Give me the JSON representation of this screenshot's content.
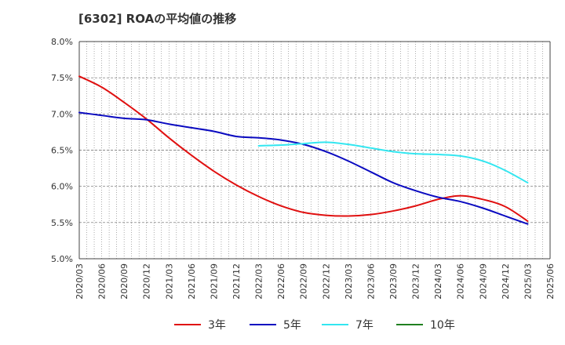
{
  "chart_data": {
    "type": "line",
    "title": "[6302]  ROAの平均値の推移",
    "xlabel": "",
    "ylabel": "",
    "x": [
      "2020/03",
      "2020/06",
      "2020/09",
      "2020/12",
      "2021/03",
      "2021/06",
      "2021/09",
      "2021/12",
      "2022/03",
      "2022/06",
      "2022/09",
      "2022/12",
      "2023/03",
      "2023/06",
      "2023/09",
      "2023/12",
      "2024/03",
      "2024/06",
      "2024/09",
      "2024/12",
      "2025/03",
      "2025/06"
    ],
    "ylim": [
      5.0,
      8.0
    ],
    "yticks": [
      5.0,
      5.5,
      6.0,
      6.5,
      7.0,
      7.5,
      8.0
    ],
    "ytick_labels": [
      "5.0%",
      "5.5%",
      "6.0%",
      "6.5%",
      "7.0%",
      "7.5%",
      "8.0%"
    ],
    "grid": true,
    "legend_position": "bottom",
    "series": [
      {
        "name": "3年",
        "color": "#e01010",
        "values": [
          7.52,
          7.37,
          7.16,
          6.93,
          6.67,
          6.43,
          6.21,
          6.02,
          5.86,
          5.73,
          5.64,
          5.6,
          5.59,
          5.61,
          5.66,
          5.73,
          5.82,
          5.87,
          5.82,
          5.72,
          5.52,
          null
        ]
      },
      {
        "name": "5年",
        "color": "#0a0ac0",
        "values": [
          7.02,
          6.98,
          6.94,
          6.92,
          6.86,
          6.81,
          6.76,
          6.69,
          6.67,
          6.64,
          6.58,
          6.48,
          6.35,
          6.2,
          6.05,
          5.94,
          5.85,
          5.79,
          5.7,
          5.59,
          5.48,
          null
        ]
      },
      {
        "name": "7年",
        "color": "#33e6f0",
        "values": [
          null,
          null,
          null,
          null,
          null,
          null,
          null,
          null,
          6.56,
          6.57,
          6.59,
          6.61,
          6.58,
          6.53,
          6.48,
          6.45,
          6.44,
          6.42,
          6.35,
          6.22,
          6.05,
          null
        ]
      },
      {
        "name": "10年",
        "color": "#208020",
        "values": [
          null,
          null,
          null,
          null,
          null,
          null,
          null,
          null,
          null,
          null,
          null,
          null,
          null,
          null,
          null,
          null,
          null,
          null,
          null,
          null,
          null,
          null
        ]
      }
    ]
  }
}
